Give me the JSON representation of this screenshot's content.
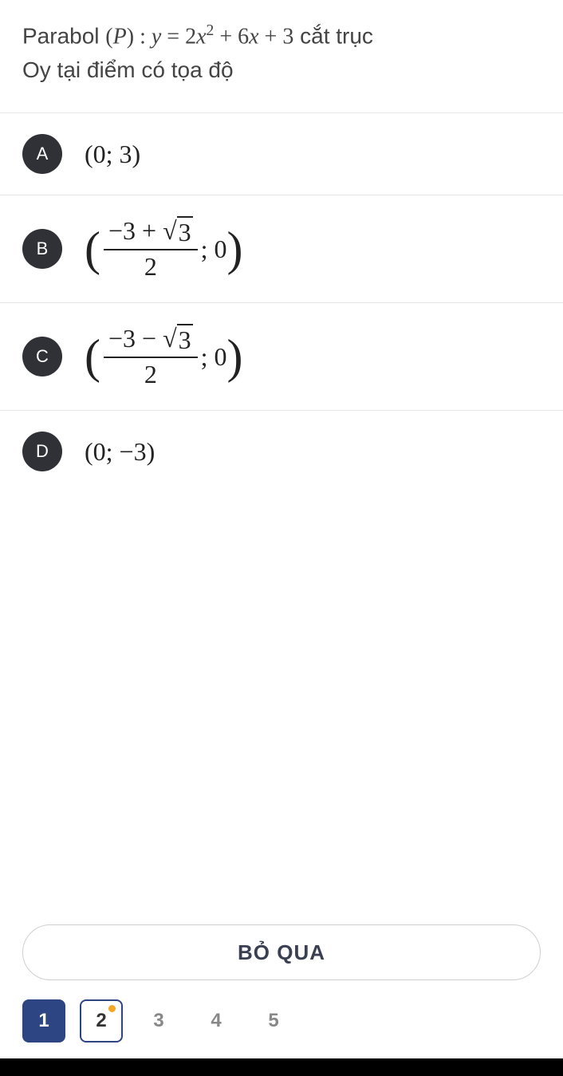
{
  "question": {
    "prefix": "Parabol ",
    "p_open": "(",
    "p_var": "P",
    "p_close": ")",
    "colon": " : ",
    "y": "y",
    "eq": " = ",
    "two": "2",
    "x": "x",
    "sq": "2",
    "plus1": " + 6",
    "x2": "x",
    "plus2": " + 3",
    "suffix1": " cắt trục",
    "line2": "Oy tại điểm có tọa độ"
  },
  "options": {
    "a": {
      "letter": "A",
      "text": "(0; 3)"
    },
    "b": {
      "letter": "B",
      "num": "−3 + ",
      "sqrt": "3",
      "den": "2",
      "tail": "; 0"
    },
    "c": {
      "letter": "C",
      "num": "−3 − ",
      "sqrt": "3",
      "den": "2",
      "tail": "; 0"
    },
    "d": {
      "letter": "D",
      "text": "(0; −3)"
    }
  },
  "skip_label": "BỎ QUA",
  "pages": {
    "p1": "1",
    "p2": "2",
    "p3": "3",
    "p4": "4",
    "p5": "5"
  }
}
